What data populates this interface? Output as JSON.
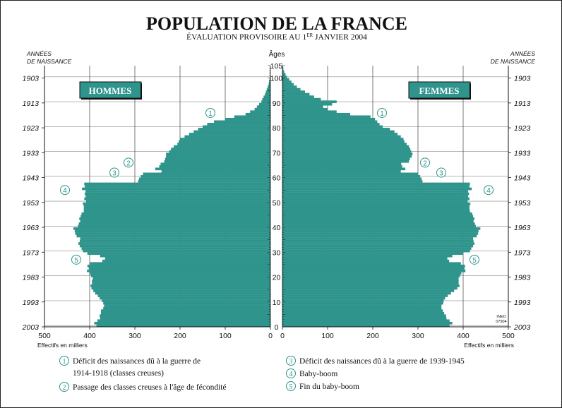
{
  "title": "POPULATION DE LA FRANCE",
  "subtitle_pre": "ÉVALUATION PROVISOIRE AU 1",
  "subtitle_sup": "ER",
  "subtitle_post": " JANVIER 2004",
  "year_axis_label_line1": "ANNÉES",
  "year_axis_label_line2": "DE NAISSANCE",
  "age_axis_label": "Âges",
  "men_label": "HOMMES",
  "women_label": "FEMMES",
  "x_axis_label": "Effectifs en milliers",
  "source_line1": "INED",
  "source_line2": "07904",
  "colors": {
    "bar": "#2e948c",
    "bar_stroke": "#1d7a73",
    "marker": "#2e948c",
    "text": "#111111"
  },
  "legend": [
    {
      "num": "1",
      "text": "Déficit des naissances dû à la guerre de",
      "text2": "1914-1918 (classes creuses)"
    },
    {
      "num": "2",
      "text": "Passage des classes creuses à l'âge de fécondité"
    },
    {
      "num": "3",
      "text": "Déficit des naissances dû à la guerre de 1939-1945"
    },
    {
      "num": "4",
      "text": "Baby-boom"
    },
    {
      "num": "5",
      "text": "Fin du baby-boom"
    }
  ],
  "chart_data": {
    "type": "bar",
    "orientation": "population-pyramid",
    "title": "POPULATION DE LA FRANCE",
    "subtitle": "ÉVALUATION PROVISOIRE AU 1ER JANVIER 2004",
    "xlabel": "Effectifs en milliers",
    "ylabel": "Âges",
    "xlim": [
      0,
      500
    ],
    "ylim": [
      0,
      105
    ],
    "x_ticks": [
      0,
      100,
      200,
      300,
      400,
      500
    ],
    "age_ticks": [
      0,
      10,
      20,
      30,
      40,
      50,
      60,
      70,
      80,
      90,
      100,
      105
    ],
    "birth_year_ticks": [
      2003,
      1993,
      1983,
      1973,
      1963,
      1953,
      1943,
      1933,
      1923,
      1913,
      1903
    ],
    "annotations": [
      {
        "num": "1",
        "age": 86
      },
      {
        "num": "2",
        "age": 66
      },
      {
        "num": "3",
        "age": 62
      },
      {
        "num": "4",
        "age": 55
      },
      {
        "num": "5",
        "age": 27
      }
    ],
    "series": [
      {
        "name": "HOMMES",
        "values": [
          385,
          390,
          383,
          377,
          378,
          375,
          375,
          370,
          368,
          370,
          373,
          378,
          382,
          388,
          392,
          396,
          398,
          395,
          395,
          393,
          397,
          400,
          406,
          402,
          405,
          399,
          372,
          366,
          377,
          405,
          415,
          418,
          422,
          425,
          422,
          421,
          429,
          432,
          433,
          436,
          426,
          424,
          421,
          423,
          420,
          418,
          413,
          413,
          413,
          415,
          408,
          412,
          409,
          411,
          409,
          417,
          411,
          412,
          293,
          291,
          287,
          282,
          241,
          255,
          246,
          243,
          235,
          233,
          231,
          231,
          224,
          220,
          214,
          206,
          203,
          200,
          190,
          180,
          170,
          160,
          150,
          140,
          125,
          100,
          80,
          55,
          45,
          35,
          30,
          25,
          20,
          18,
          15,
          12,
          10,
          8,
          6,
          4,
          3,
          2,
          1,
          1,
          0.5,
          0.3,
          0.1,
          0.05
        ]
      },
      {
        "name": "FEMMES",
        "values": [
          370,
          376,
          370,
          363,
          362,
          358,
          355,
          352,
          352,
          356,
          357,
          360,
          366,
          373,
          380,
          387,
          392,
          390,
          390,
          390,
          393,
          396,
          405,
          403,
          404,
          395,
          369,
          365,
          376,
          400,
          415,
          418,
          422,
          425,
          423,
          422,
          430,
          433,
          434,
          438,
          428,
          426,
          423,
          425,
          422,
          420,
          415,
          414,
          414,
          416,
          410,
          414,
          411,
          413,
          411,
          419,
          414,
          415,
          310,
          308,
          305,
          300,
          262,
          272,
          265,
          263,
          280,
          282,
          286,
          288,
          285,
          283,
          280,
          275,
          270,
          268,
          262,
          255,
          248,
          238,
          222,
          215,
          210,
          205,
          195,
          150,
          120,
          100,
          90,
          110,
          120,
          85,
          70,
          60,
          50,
          40,
          32,
          25,
          20,
          15,
          10,
          7,
          4,
          2,
          1,
          0.5
        ]
      }
    ]
  }
}
